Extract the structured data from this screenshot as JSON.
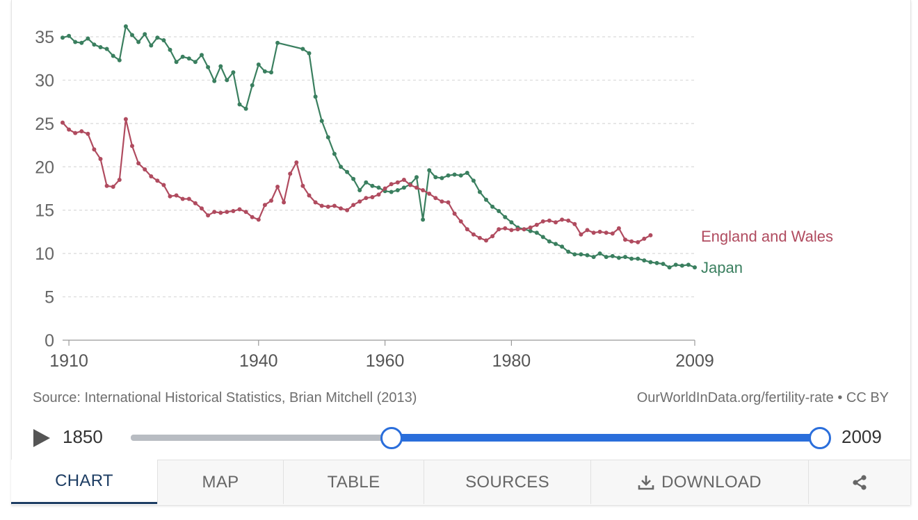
{
  "chart_data": {
    "type": "line",
    "title": "",
    "xlabel": "",
    "ylabel": "",
    "xlim": [
      1909,
      2009
    ],
    "ylim": [
      0,
      37
    ],
    "yticks": [
      0,
      5,
      10,
      15,
      20,
      25,
      30,
      35
    ],
    "xticks": [
      1910,
      1940,
      1960,
      1980,
      2009
    ],
    "grid": "horizontal dashed",
    "legend": "right end of lines",
    "series": [
      {
        "name": "Japan",
        "color": "#3a7f5f",
        "x": [
          1909,
          1910,
          1911,
          1912,
          1913,
          1914,
          1915,
          1916,
          1917,
          1918,
          1919,
          1920,
          1921,
          1922,
          1923,
          1924,
          1925,
          1926,
          1927,
          1928,
          1929,
          1930,
          1931,
          1932,
          1933,
          1934,
          1935,
          1936,
          1937,
          1938,
          1939,
          1940,
          1941,
          1942,
          1943,
          1947,
          1948,
          1949,
          1950,
          1951,
          1952,
          1953,
          1954,
          1955,
          1956,
          1957,
          1958,
          1959,
          1960,
          1961,
          1962,
          1963,
          1964,
          1965,
          1966,
          1967,
          1968,
          1969,
          1970,
          1971,
          1972,
          1973,
          1974,
          1975,
          1976,
          1977,
          1978,
          1979,
          1980,
          1981,
          1982,
          1983,
          1984,
          1985,
          1986,
          1987,
          1988,
          1989,
          1990,
          1991,
          1992,
          1993,
          1994,
          1995,
          1996,
          1997,
          1998,
          1999,
          2000,
          2001,
          2002,
          2003,
          2004,
          2005,
          2006,
          2007,
          2008,
          2009
        ],
        "values": [
          34.9,
          35.1,
          34.4,
          34.3,
          34.8,
          34.1,
          33.8,
          33.6,
          32.8,
          32.3,
          36.2,
          35.2,
          34.4,
          35.3,
          34.0,
          34.9,
          34.6,
          33.5,
          32.1,
          32.7,
          32.5,
          32.1,
          32.9,
          31.5,
          29.9,
          31.6,
          30.0,
          30.9,
          27.2,
          26.7,
          29.4,
          31.8,
          31.0,
          30.9,
          34.3,
          33.6,
          33.1,
          28.1,
          25.3,
          23.4,
          21.5,
          20.0,
          19.4,
          18.6,
          17.3,
          18.2,
          17.8,
          17.6,
          17.2,
          17.1,
          17.3,
          17.6,
          18.0,
          18.8,
          13.9,
          19.6,
          18.8,
          18.7,
          19.0,
          19.1,
          19.0,
          19.3,
          18.4,
          17.1,
          16.2,
          15.4,
          14.9,
          14.2,
          13.6,
          13.0,
          12.8,
          12.6,
          12.4,
          11.9,
          11.4,
          11.1,
          10.8,
          10.2,
          9.9,
          9.9,
          9.8,
          9.6,
          10.0,
          9.6,
          9.7,
          9.5,
          9.6,
          9.4,
          9.4,
          9.2,
          9.0,
          8.9,
          8.8,
          8.4,
          8.7,
          8.6,
          8.7,
          8.4
        ]
      },
      {
        "name": "England and Wales",
        "color": "#b04b5f",
        "x": [
          1909,
          1910,
          1911,
          1912,
          1913,
          1914,
          1915,
          1916,
          1917,
          1918,
          1919,
          1920,
          1921,
          1922,
          1923,
          1924,
          1925,
          1926,
          1927,
          1928,
          1929,
          1930,
          1931,
          1932,
          1933,
          1934,
          1935,
          1936,
          1937,
          1938,
          1939,
          1940,
          1941,
          1942,
          1943,
          1944,
          1945,
          1946,
          1947,
          1948,
          1949,
          1950,
          1951,
          1952,
          1953,
          1954,
          1955,
          1956,
          1957,
          1958,
          1959,
          1960,
          1961,
          1962,
          1963,
          1964,
          1965,
          1966,
          1967,
          1968,
          1969,
          1970,
          1971,
          1972,
          1973,
          1974,
          1975,
          1976,
          1977,
          1978,
          1979,
          1980,
          1981,
          1982,
          1983,
          1984,
          1985,
          1986,
          1987,
          1988,
          1989,
          1990,
          1991,
          1992,
          1993,
          1994,
          1995,
          1996,
          1997,
          1998,
          1999,
          2000,
          2001,
          2002
        ],
        "values": [
          25.1,
          24.3,
          23.9,
          24.1,
          23.8,
          22.0,
          20.9,
          17.8,
          17.7,
          18.5,
          25.5,
          22.4,
          20.4,
          19.7,
          18.9,
          18.4,
          17.9,
          16.6,
          16.7,
          16.3,
          16.3,
          15.8,
          15.2,
          14.4,
          14.8,
          14.7,
          14.8,
          14.9,
          15.1,
          14.8,
          14.2,
          13.9,
          15.6,
          16.1,
          17.7,
          15.9,
          19.2,
          20.5,
          17.8,
          16.7,
          15.9,
          15.5,
          15.4,
          15.5,
          15.2,
          15.0,
          15.6,
          16.0,
          16.4,
          16.5,
          16.8,
          17.5,
          18.0,
          18.2,
          18.5,
          17.9,
          17.6,
          17.3,
          16.9,
          16.4,
          16.0,
          15.9,
          14.6,
          13.7,
          12.8,
          12.2,
          11.8,
          11.5,
          12.0,
          12.8,
          12.9,
          12.7,
          12.8,
          12.8,
          13.0,
          13.3,
          13.7,
          13.8,
          13.6,
          13.9,
          13.8,
          13.4,
          12.2,
          12.7,
          12.4,
          12.5,
          12.4,
          12.3,
          12.9,
          11.6,
          11.4,
          11.3,
          11.7,
          12.1
        ]
      }
    ]
  },
  "footer": {
    "source": "Source: International Historical Statistics, Brian Mitchell (2013)",
    "credit": "OurWorldInData.org/fertility-rate • CC BY"
  },
  "timeline": {
    "start_year": "1850",
    "end_year": "2009",
    "range_start_fraction": 0.38,
    "range_end_fraction": 1.0
  },
  "tabs": {
    "chart": "CHART",
    "map": "MAP",
    "table": "TABLE",
    "sources": "SOURCES",
    "download": "DOWNLOAD"
  },
  "icons": {
    "play": "play-icon",
    "download": "download-icon",
    "share": "share-icon"
  }
}
